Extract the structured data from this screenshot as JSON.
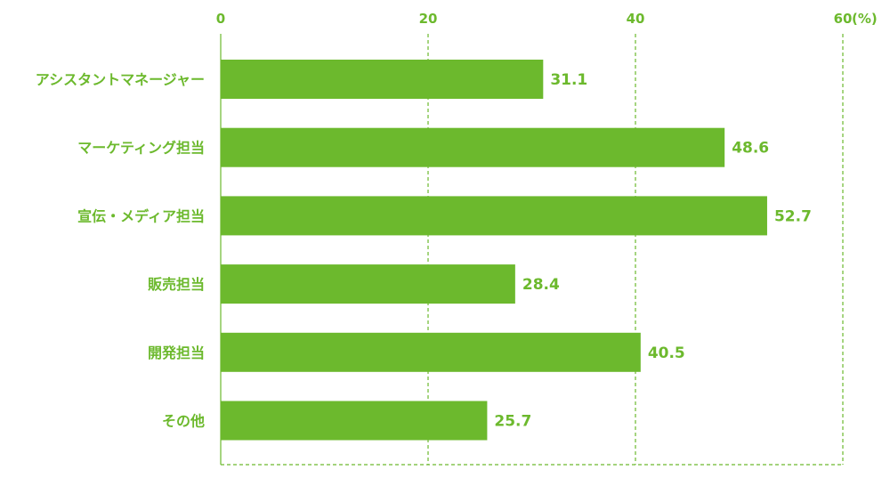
{
  "chart_data": {
    "type": "bar",
    "orientation": "horizontal",
    "categories": [
      "アシスタントマネージャー",
      "マーケティング担当",
      "宣伝・メディア担当",
      "販売担当",
      "開発担当",
      "その他"
    ],
    "values": [
      31.1,
      48.6,
      52.7,
      28.4,
      40.5,
      25.7
    ],
    "value_labels": [
      "31.1",
      "48.6",
      "52.7",
      "28.4",
      "40.5",
      "25.7"
    ],
    "xlim": [
      0,
      60
    ],
    "ticks": [
      0,
      20,
      40,
      60
    ],
    "tick_labels": [
      "0",
      "20",
      "40",
      "60"
    ],
    "unit_label": "(%)",
    "grid": true,
    "legend": "none",
    "colors": {
      "bar": "#6cb92d",
      "text": "#6cb92d",
      "grid": "#6cb92d"
    }
  }
}
